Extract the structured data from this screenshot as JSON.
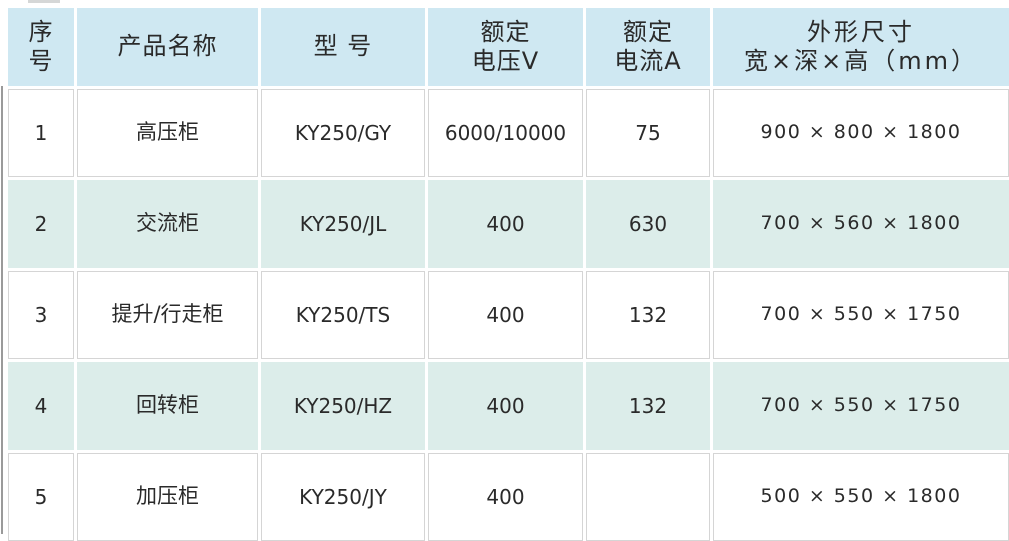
{
  "colors": {
    "header_bg": "#cfe8f2",
    "alt_row_bg": "#dcedea",
    "row_bg": "#ffffff",
    "border": "#d5d5d5",
    "text": "#2a2a2a"
  },
  "table": {
    "header": {
      "index_lines": [
        "序",
        "号"
      ],
      "product": "产品名称",
      "model": "型 号",
      "voltage_lines": [
        "额定",
        "电压V"
      ],
      "current_lines": [
        "额定",
        "电流A"
      ],
      "dimensions_lines": [
        "外形尺寸",
        "宽×深×高（mm）"
      ]
    },
    "rows": [
      {
        "index": "1",
        "product": "高压柜",
        "model": "KY250/GY",
        "voltage": "6000/10000",
        "current": "75",
        "dimensions": "900 × 800 × 1800"
      },
      {
        "index": "2",
        "product": "交流柜",
        "model": "KY250/JL",
        "voltage": "400",
        "current": "630",
        "dimensions": "700 × 560 × 1800"
      },
      {
        "index": "3",
        "product": "提升/行走柜",
        "model": "KY250/TS",
        "voltage": "400",
        "current": "132",
        "dimensions": "700 × 550 × 1750"
      },
      {
        "index": "4",
        "product": "回转柜",
        "model": "KY250/HZ",
        "voltage": "400",
        "current": "132",
        "dimensions": "700 × 550 × 1750"
      },
      {
        "index": "5",
        "product": "加压柜",
        "model": "KY250/JY",
        "voltage": "400",
        "current": "",
        "dimensions": "500 × 550 × 1800"
      }
    ]
  }
}
